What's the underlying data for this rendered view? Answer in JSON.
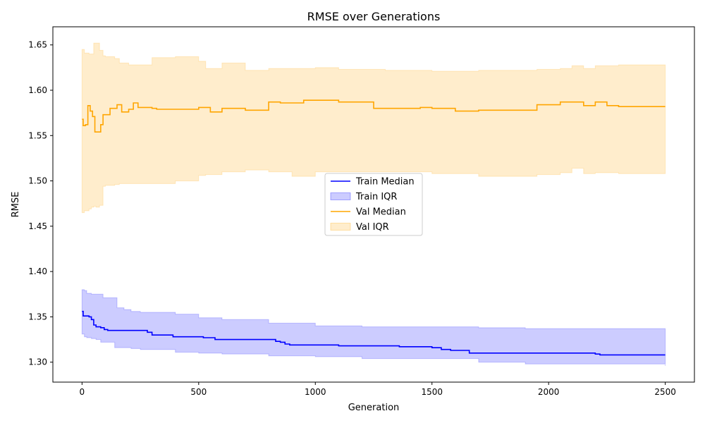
{
  "chart_data": {
    "type": "line",
    "title": "RMSE over Generations",
    "xlabel": "Generation",
    "ylabel": "RMSE",
    "xlim": [
      -125,
      2625
    ],
    "ylim": [
      1.278,
      1.67
    ],
    "x_ticks": [
      0,
      500,
      1000,
      1500,
      2000,
      2500
    ],
    "y_ticks": [
      1.3,
      1.35,
      1.4,
      1.45,
      1.5,
      1.55,
      1.6,
      1.65
    ],
    "grid": false,
    "legend_placement": "center",
    "legend": [
      {
        "label": "Train Median",
        "kind": "line",
        "color": "#0000ff"
      },
      {
        "label": "Train IQR",
        "kind": "band",
        "color": "#0000ff"
      },
      {
        "label": "Val Median",
        "kind": "line",
        "color": "#ffa500"
      },
      {
        "label": "Val IQR",
        "kind": "band",
        "color": "#ffa500"
      }
    ],
    "series": [
      {
        "name": "Train Median",
        "kind": "line",
        "color": "#0000ff",
        "x": [
          0,
          5,
          30,
          40,
          50,
          60,
          70,
          80,
          95,
          110,
          140,
          170,
          210,
          280,
          300,
          390,
          520,
          570,
          700,
          830,
          850,
          870,
          890,
          1100,
          1360,
          1500,
          1540,
          1580,
          1660,
          1700,
          2100,
          2200,
          2220,
          2300,
          2500
        ],
        "y": [
          1.356,
          1.351,
          1.35,
          1.347,
          1.341,
          1.339,
          1.339,
          1.338,
          1.336,
          1.335,
          1.335,
          1.335,
          1.335,
          1.333,
          1.33,
          1.328,
          1.327,
          1.325,
          1.325,
          1.323,
          1.322,
          1.32,
          1.319,
          1.318,
          1.317,
          1.316,
          1.314,
          1.313,
          1.31,
          1.31,
          1.31,
          1.309,
          1.308,
          1.308,
          1.308
        ]
      },
      {
        "name": "Train IQR",
        "kind": "band",
        "color": "#0000ff",
        "x": [
          0,
          10,
          20,
          40,
          60,
          80,
          90,
          140,
          150,
          180,
          210,
          250,
          400,
          500,
          600,
          800,
          1000,
          1200,
          1700,
          1900,
          2500
        ],
        "low": [
          1.331,
          1.328,
          1.327,
          1.326,
          1.325,
          1.322,
          1.322,
          1.316,
          1.316,
          1.316,
          1.315,
          1.314,
          1.311,
          1.31,
          1.309,
          1.307,
          1.306,
          1.304,
          1.3,
          1.298,
          1.296
        ],
        "high": [
          1.38,
          1.379,
          1.376,
          1.375,
          1.375,
          1.375,
          1.371,
          1.371,
          1.36,
          1.358,
          1.356,
          1.355,
          1.353,
          1.349,
          1.347,
          1.343,
          1.34,
          1.339,
          1.338,
          1.337,
          1.337
        ]
      },
      {
        "name": "Val Median",
        "kind": "line",
        "color": "#ffa500",
        "x": [
          0,
          5,
          15,
          25,
          35,
          45,
          55,
          70,
          80,
          90,
          120,
          150,
          170,
          200,
          220,
          240,
          300,
          320,
          500,
          550,
          600,
          650,
          700,
          800,
          850,
          950,
          1100,
          1150,
          1250,
          1350,
          1450,
          1500,
          1550,
          1600,
          1700,
          1800,
          1900,
          1950,
          2000,
          2050,
          2100,
          2150,
          2200,
          2250,
          2300,
          2400,
          2500
        ],
        "y": [
          1.568,
          1.561,
          1.562,
          1.583,
          1.577,
          1.571,
          1.554,
          1.554,
          1.562,
          1.573,
          1.58,
          1.584,
          1.576,
          1.579,
          1.586,
          1.581,
          1.58,
          1.579,
          1.581,
          1.576,
          1.58,
          1.58,
          1.578,
          1.587,
          1.586,
          1.589,
          1.587,
          1.587,
          1.58,
          1.58,
          1.581,
          1.58,
          1.58,
          1.577,
          1.578,
          1.578,
          1.578,
          1.584,
          1.584,
          1.587,
          1.587,
          1.583,
          1.587,
          1.583,
          1.582,
          1.582,
          1.582
        ]
      },
      {
        "name": "Val IQR",
        "kind": "band",
        "color": "#ffa500",
        "x": [
          0,
          10,
          30,
          40,
          50,
          60,
          75,
          90,
          100,
          140,
          160,
          200,
          300,
          400,
          500,
          530,
          600,
          700,
          800,
          900,
          1000,
          1100,
          1200,
          1300,
          1500,
          1600,
          1700,
          1800,
          1950,
          2050,
          2100,
          2150,
          2200,
          2300,
          2500
        ],
        "low": [
          1.465,
          1.467,
          1.469,
          1.471,
          1.472,
          1.471,
          1.473,
          1.494,
          1.495,
          1.496,
          1.497,
          1.497,
          1.497,
          1.5,
          1.506,
          1.507,
          1.51,
          1.512,
          1.51,
          1.505,
          1.51,
          1.51,
          1.51,
          1.51,
          1.508,
          1.508,
          1.505,
          1.505,
          1.507,
          1.509,
          1.514,
          1.508,
          1.509,
          1.508,
          1.508
        ],
        "high": [
          1.645,
          1.641,
          1.64,
          1.64,
          1.652,
          1.652,
          1.644,
          1.638,
          1.637,
          1.635,
          1.63,
          1.628,
          1.636,
          1.637,
          1.632,
          1.624,
          1.63,
          1.622,
          1.624,
          1.624,
          1.625,
          1.623,
          1.623,
          1.622,
          1.621,
          1.621,
          1.622,
          1.622,
          1.623,
          1.624,
          1.627,
          1.624,
          1.627,
          1.628,
          1.628
        ]
      }
    ]
  }
}
